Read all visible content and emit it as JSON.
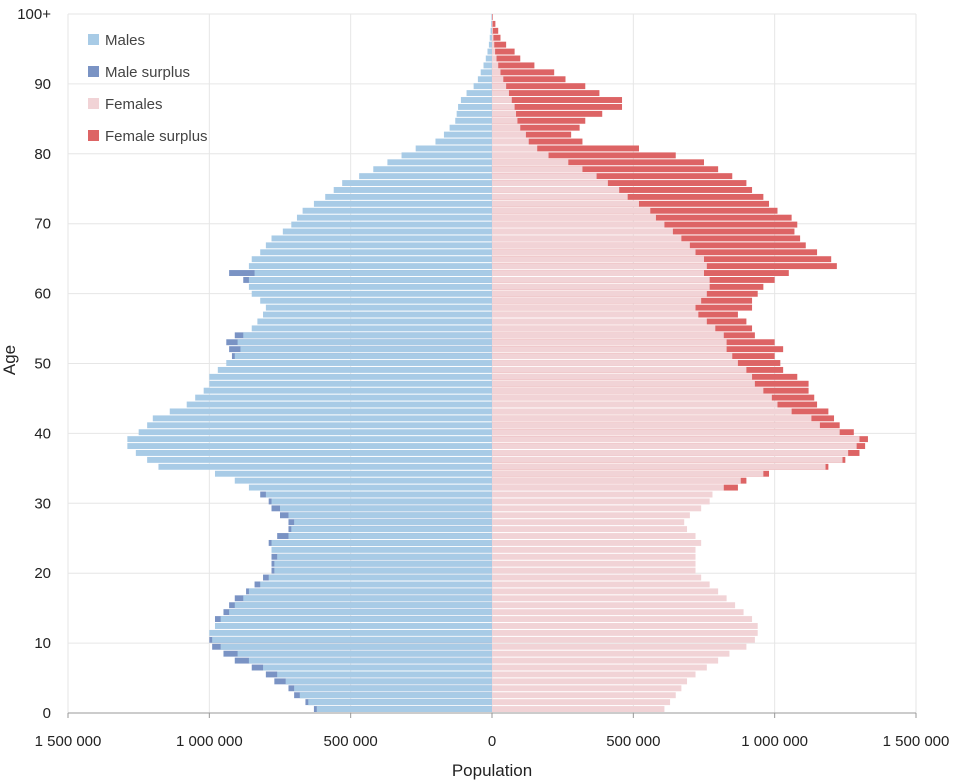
{
  "chart_data": {
    "type": "bar",
    "orientation": "horizontal",
    "xlabel": "Population",
    "ylabel": "Age",
    "xlim": [
      -1500000,
      1500000
    ],
    "ylim": [
      0,
      100
    ],
    "x_ticks": [
      {
        "value": -1500000,
        "label": "1 500 000"
      },
      {
        "value": -1000000,
        "label": "1 000 000"
      },
      {
        "value": -500000,
        "label": "500 000"
      },
      {
        "value": 0,
        "label": "0"
      },
      {
        "value": 500000,
        "label": "500 000"
      },
      {
        "value": 1000000,
        "label": "1 000 000"
      },
      {
        "value": 1500000,
        "label": "1 500 000"
      }
    ],
    "y_ticks": [
      {
        "value": 0,
        "label": "0"
      },
      {
        "value": 10,
        "label": "10"
      },
      {
        "value": 20,
        "label": "20"
      },
      {
        "value": 30,
        "label": "30"
      },
      {
        "value": 40,
        "label": "40"
      },
      {
        "value": 50,
        "label": "50"
      },
      {
        "value": 60,
        "label": "60"
      },
      {
        "value": 70,
        "label": "70"
      },
      {
        "value": 80,
        "label": "80"
      },
      {
        "value": 90,
        "label": "90"
      },
      {
        "value": 100,
        "label": "100+"
      }
    ],
    "grid": true,
    "legend_position": "top-left",
    "series": [
      {
        "name": "Males",
        "color": "#a8cbe6"
      },
      {
        "name": "Male surplus",
        "color": "#7a93c4"
      },
      {
        "name": "Females",
        "color": "#f1d3d6"
      },
      {
        "name": "Female surplus",
        "color": "#dd6465"
      }
    ],
    "ages": [
      0,
      1,
      2,
      3,
      4,
      5,
      6,
      7,
      8,
      9,
      10,
      11,
      12,
      13,
      14,
      15,
      16,
      17,
      18,
      19,
      20,
      21,
      22,
      23,
      24,
      25,
      26,
      27,
      28,
      29,
      30,
      31,
      32,
      33,
      34,
      35,
      36,
      37,
      38,
      39,
      40,
      41,
      42,
      43,
      44,
      45,
      46,
      47,
      48,
      49,
      50,
      51,
      52,
      53,
      54,
      55,
      56,
      57,
      58,
      59,
      60,
      61,
      62,
      63,
      64,
      65,
      66,
      67,
      68,
      69,
      70,
      71,
      72,
      73,
      74,
      75,
      76,
      77,
      78,
      79,
      80,
      81,
      82,
      83,
      84,
      85,
      86,
      87,
      88,
      89,
      90,
      91,
      92,
      93,
      94,
      95,
      96,
      97,
      98,
      99,
      100
    ],
    "males": [
      620000,
      650000,
      680000,
      700000,
      730000,
      760000,
      810000,
      860000,
      900000,
      960000,
      990000,
      1000000,
      980000,
      960000,
      930000,
      910000,
      880000,
      860000,
      820000,
      790000,
      770000,
      770000,
      760000,
      780000,
      780000,
      720000,
      710000,
      700000,
      720000,
      750000,
      780000,
      800000,
      860000,
      910000,
      980000,
      1180000,
      1220000,
      1260000,
      1290000,
      1290000,
      1250000,
      1220000,
      1200000,
      1140000,
      1080000,
      1050000,
      1020000,
      1000000,
      1000000,
      970000,
      940000,
      910000,
      890000,
      900000,
      880000,
      850000,
      830000,
      810000,
      800000,
      820000,
      850000,
      860000,
      860000,
      840000,
      860000,
      850000,
      820000,
      800000,
      780000,
      740000,
      710000,
      690000,
      670000,
      630000,
      590000,
      560000,
      530000,
      470000,
      420000,
      370000,
      320000,
      270000,
      200000,
      170000,
      150000,
      130000,
      125000,
      120000,
      110000,
      90000,
      65000,
      50000,
      40000,
      30000,
      22000,
      16000,
      11000,
      8000,
      5000,
      3000,
      2000
    ],
    "male_surplus": [
      630000,
      660000,
      700000,
      720000,
      770000,
      800000,
      850000,
      910000,
      950000,
      990000,
      1000000,
      1000000,
      980000,
      980000,
      950000,
      930000,
      910000,
      870000,
      840000,
      810000,
      780000,
      780000,
      780000,
      780000,
      790000,
      760000,
      720000,
      720000,
      750000,
      780000,
      790000,
      820000,
      860000,
      910000,
      980000,
      1180000,
      1220000,
      1260000,
      1290000,
      1290000,
      1250000,
      1220000,
      1200000,
      1140000,
      1080000,
      1050000,
      1020000,
      1000000,
      1000000,
      970000,
      940000,
      920000,
      930000,
      940000,
      910000,
      850000,
      830000,
      810000,
      800000,
      820000,
      850000,
      860000,
      880000,
      930000,
      860000,
      850000,
      820000,
      800000,
      780000,
      740000,
      710000,
      690000,
      670000,
      630000,
      590000,
      560000,
      530000,
      470000,
      420000,
      370000,
      320000,
      270000,
      200000,
      170000,
      150000,
      130000,
      125000,
      120000,
      110000,
      90000,
      65000,
      50000,
      40000,
      30000,
      22000,
      16000,
      11000,
      8000,
      5000,
      3000,
      2000
    ],
    "females": [
      610000,
      630000,
      650000,
      670000,
      690000,
      720000,
      760000,
      800000,
      840000,
      900000,
      930000,
      940000,
      940000,
      920000,
      890000,
      860000,
      830000,
      800000,
      770000,
      740000,
      720000,
      720000,
      720000,
      720000,
      740000,
      720000,
      690000,
      680000,
      700000,
      740000,
      770000,
      780000,
      820000,
      880000,
      960000,
      1180000,
      1240000,
      1260000,
      1290000,
      1300000,
      1230000,
      1160000,
      1130000,
      1060000,
      1010000,
      990000,
      960000,
      930000,
      920000,
      900000,
      870000,
      850000,
      830000,
      830000,
      820000,
      790000,
      760000,
      730000,
      720000,
      740000,
      760000,
      770000,
      770000,
      750000,
      760000,
      750000,
      720000,
      700000,
      670000,
      640000,
      610000,
      580000,
      560000,
      520000,
      480000,
      450000,
      410000,
      370000,
      320000,
      270000,
      200000,
      160000,
      130000,
      120000,
      100000,
      90000,
      85000,
      80000,
      70000,
      60000,
      50000,
      40000,
      30000,
      22000,
      16000,
      11000,
      8000,
      5000,
      3000,
      2000,
      1000
    ],
    "female_surplus": [
      610000,
      630000,
      650000,
      670000,
      690000,
      720000,
      760000,
      800000,
      840000,
      900000,
      930000,
      940000,
      940000,
      920000,
      890000,
      860000,
      830000,
      800000,
      770000,
      740000,
      720000,
      720000,
      720000,
      720000,
      740000,
      720000,
      690000,
      680000,
      700000,
      740000,
      770000,
      780000,
      870000,
      900000,
      980000,
      1190000,
      1250000,
      1300000,
      1320000,
      1330000,
      1280000,
      1230000,
      1210000,
      1190000,
      1150000,
      1140000,
      1120000,
      1120000,
      1080000,
      1030000,
      1020000,
      1000000,
      1030000,
      1000000,
      930000,
      920000,
      900000,
      870000,
      920000,
      920000,
      940000,
      960000,
      1000000,
      1050000,
      1220000,
      1200000,
      1150000,
      1110000,
      1090000,
      1070000,
      1080000,
      1060000,
      1010000,
      980000,
      960000,
      920000,
      900000,
      850000,
      800000,
      750000,
      650000,
      520000,
      320000,
      280000,
      310000,
      330000,
      390000,
      460000,
      460000,
      380000,
      330000,
      260000,
      220000,
      150000,
      100000,
      80000,
      50000,
      30000,
      22000,
      12000,
      3000
    ]
  }
}
